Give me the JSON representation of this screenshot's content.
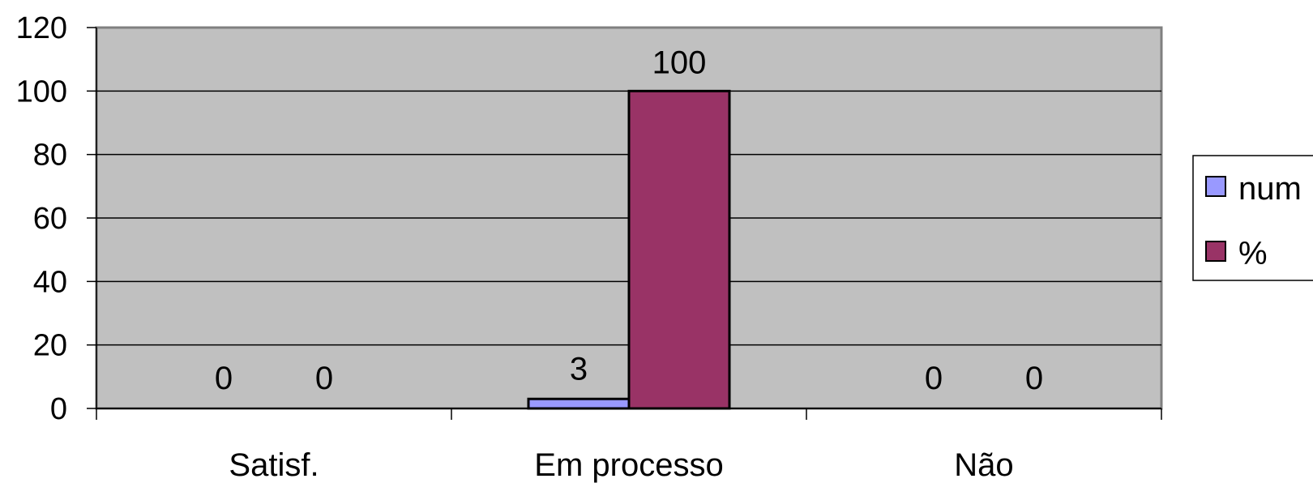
{
  "chart_data": {
    "type": "bar",
    "title": "",
    "xlabel": "",
    "ylabel": "",
    "categories": [
      "Satisf.",
      "Em processo",
      "Não"
    ],
    "series": [
      {
        "name": "num",
        "values": [
          0,
          3,
          0
        ],
        "labels": [
          "0",
          "3",
          "0"
        ]
      },
      {
        "name": "%",
        "values": [
          0,
          100,
          0
        ],
        "labels": [
          "0",
          "100",
          "0"
        ]
      }
    ],
    "ylim": [
      0,
      120
    ],
    "yticks": [
      0,
      20,
      40,
      60,
      80,
      100,
      120
    ],
    "ytick_labels": [
      "0",
      "20",
      "40",
      "60",
      "80",
      "100",
      "120"
    ],
    "grid": true,
    "legend": "right",
    "colors": {
      "plot_background": "#c0c0c0",
      "series": [
        "#9999ff",
        "#993366"
      ],
      "gridline": "#000000"
    }
  }
}
